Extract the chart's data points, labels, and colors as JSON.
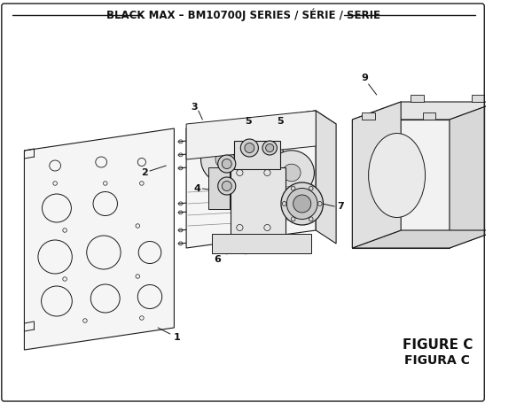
{
  "title": "BLACK MAX – BM10700J SERIES / SÉRIE / SERIE",
  "figure_label": "FIGURE C",
  "figura_label": "FIGURA C",
  "bg_color": "#ffffff",
  "line_color": "#1a1a1a",
  "text_color": "#111111",
  "title_fontsize": 8.5,
  "figure_label_fontsize": 11
}
